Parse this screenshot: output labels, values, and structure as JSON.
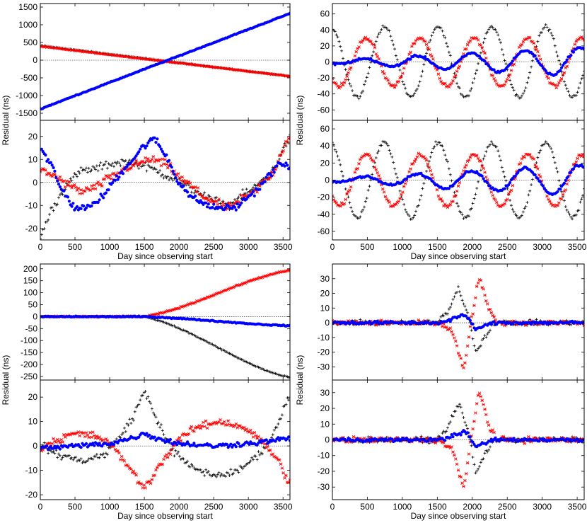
{
  "figure": {
    "series_colors": {
      "black": "#000000",
      "red": "#ff0000",
      "blue": "#0000ff"
    },
    "axis_color": "#000000",
    "zero_line_color": "#000000"
  },
  "chart_data": [
    {
      "id": "top-left-upper",
      "type": "scatter",
      "xlim": [
        0,
        3600
      ],
      "ylim": [
        -1700,
        1600
      ],
      "yticks": [
        1500,
        1000,
        500,
        0,
        -500,
        -1000,
        -1500
      ],
      "xticks": [],
      "ylabel": "",
      "xlabel": "",
      "series": [
        {
          "name": "black",
          "color": "#000000",
          "model": "linear",
          "params": {
            "a": 415,
            "b": -0.242
          },
          "noise": 8,
          "marker": "plus"
        },
        {
          "name": "red",
          "color": "#ff0000",
          "model": "linear",
          "params": {
            "a": 390,
            "b": -0.235
          },
          "noise": 8,
          "marker": "star"
        },
        {
          "name": "blue",
          "color": "#0000ff",
          "model": "linear",
          "params": {
            "a": -1380,
            "b": 0.75
          },
          "noise": 10,
          "marker": "dot"
        }
      ]
    },
    {
      "id": "top-left-lower",
      "type": "scatter",
      "xlim": [
        0,
        3600
      ],
      "ylim": [
        -25,
        27
      ],
      "yticks": [
        20,
        10,
        0,
        -10,
        -20
      ],
      "xticks": [
        0,
        500,
        1000,
        1500,
        2000,
        2500,
        3000,
        3500
      ],
      "ylabel": "Residual (ns)",
      "xlabel": "Day since observing start",
      "series": [
        {
          "name": "black",
          "color": "#000000",
          "model": "pts",
          "params": {
            "pts": [
              [
                0,
                -23
              ],
              [
                200,
                -10
              ],
              [
                400,
                0
              ],
              [
                600,
                5
              ],
              [
                800,
                6
              ],
              [
                1000,
                8
              ],
              [
                1200,
                9
              ],
              [
                1400,
                8
              ],
              [
                1600,
                6
              ],
              [
                1900,
                2
              ],
              [
                2200,
                -3
              ],
              [
                2500,
                -8
              ],
              [
                2700,
                -10
              ],
              [
                3000,
                -4
              ],
              [
                3300,
                3
              ],
              [
                3600,
                19
              ]
            ]
          },
          "noise": 1.5,
          "marker": "plus"
        },
        {
          "name": "red",
          "color": "#ff0000",
          "model": "pts",
          "params": {
            "pts": [
              [
                0,
                5
              ],
              [
                200,
                3
              ],
              [
                400,
                -1
              ],
              [
                600,
                -4
              ],
              [
                800,
                -2
              ],
              [
                1000,
                2
              ],
              [
                1300,
                7
              ],
              [
                1600,
                10
              ],
              [
                1800,
                8
              ],
              [
                2100,
                0
              ],
              [
                2400,
                -7
              ],
              [
                2700,
                -11
              ],
              [
                3000,
                -6
              ],
              [
                3300,
                2
              ],
              [
                3600,
                20
              ]
            ]
          },
          "noise": 1.5,
          "marker": "star"
        },
        {
          "name": "blue",
          "color": "#0000ff",
          "model": "pts",
          "params": {
            "pts": [
              [
                0,
                15
              ],
              [
                150,
                8
              ],
              [
                300,
                -3
              ],
              [
                500,
                -11
              ],
              [
                700,
                -11
              ],
              [
                900,
                -6
              ],
              [
                1100,
                2
              ],
              [
                1300,
                9
              ],
              [
                1500,
                16
              ],
              [
                1650,
                19
              ],
              [
                1800,
                12
              ],
              [
                2000,
                0
              ],
              [
                2200,
                -7
              ],
              [
                2500,
                -11
              ],
              [
                2800,
                -11
              ],
              [
                3100,
                -4
              ],
              [
                3300,
                3
              ],
              [
                3450,
                8
              ],
              [
                3600,
                7
              ]
            ]
          },
          "noise": 1.2,
          "marker": "dot"
        }
      ]
    },
    {
      "id": "top-right-upper",
      "type": "scatter",
      "xlim": [
        0,
        3600
      ],
      "ylim": [
        -73,
        73
      ],
      "yticks": [
        60,
        40,
        20,
        0,
        -20,
        -40,
        -60
      ],
      "xticks": [],
      "ylabel": "",
      "xlabel": "",
      "series": [
        {
          "name": "black",
          "color": "#000000",
          "model": "sine",
          "params": {
            "amp": 44,
            "period": 770,
            "phase": 1.8
          },
          "noise": 2,
          "marker": "plus"
        },
        {
          "name": "red",
          "color": "#ff0000",
          "model": "sine",
          "params": {
            "amp": 30,
            "period": 770,
            "phase": 3.9
          },
          "noise": 2,
          "marker": "star"
        },
        {
          "name": "blue",
          "color": "#0000ff",
          "model": "sine_grow",
          "params": {
            "amp0": 2,
            "amp1": 18,
            "period": 770,
            "phase": 4.2
          },
          "noise": 1.2,
          "marker": "dot"
        }
      ]
    },
    {
      "id": "top-right-lower",
      "type": "scatter",
      "xlim": [
        0,
        3600
      ],
      "ylim": [
        -70,
        70
      ],
      "yticks": [
        60,
        40,
        20,
        0,
        -20,
        -40,
        -60
      ],
      "xticks": [
        0,
        500,
        1000,
        1500,
        2000,
        2500,
        3000,
        3500
      ],
      "ylabel": "Residual (ns)",
      "xlabel": "Day since observing start",
      "series": [
        {
          "name": "black",
          "color": "#000000",
          "model": "sine",
          "params": {
            "amp": 44,
            "period": 770,
            "phase": 1.8
          },
          "noise": 2,
          "marker": "plus"
        },
        {
          "name": "red",
          "color": "#ff0000",
          "model": "sine",
          "params": {
            "amp": 30,
            "period": 770,
            "phase": 3.9
          },
          "noise": 2,
          "marker": "star"
        },
        {
          "name": "blue",
          "color": "#0000ff",
          "model": "sine_grow",
          "params": {
            "amp0": 2,
            "amp1": 18,
            "period": 770,
            "phase": 4.2
          },
          "noise": 1.2,
          "marker": "dot"
        }
      ]
    },
    {
      "id": "bottom-left-upper",
      "type": "scatter",
      "xlim": [
        0,
        3600
      ],
      "ylim": [
        -265,
        220
      ],
      "yticks": [
        200,
        150,
        100,
        50,
        0,
        -50,
        -100,
        -150,
        -200,
        -250
      ],
      "xticks": [],
      "ylabel": "Residual (ns)",
      "xlabel": "",
      "series": [
        {
          "name": "black",
          "color": "#000000",
          "model": "pts",
          "params": {
            "pts": [
              [
                0,
                0
              ],
              [
                1500,
                0
              ],
              [
                3600,
                -255
              ]
            ]
          },
          "noise": 2,
          "marker": "plus"
        },
        {
          "name": "red",
          "color": "#ff0000",
          "model": "pts",
          "params": {
            "pts": [
              [
                0,
                0
              ],
              [
                1500,
                0
              ],
              [
                3600,
                193
              ]
            ]
          },
          "noise": 2,
          "marker": "star"
        },
        {
          "name": "blue",
          "color": "#0000ff",
          "model": "pts",
          "params": {
            "pts": [
              [
                0,
                0
              ],
              [
                1500,
                0
              ],
              [
                3600,
                -38
              ]
            ]
          },
          "noise": 2,
          "marker": "dot"
        }
      ]
    },
    {
      "id": "bottom-left-lower",
      "type": "scatter",
      "xlim": [
        0,
        3600
      ],
      "ylim": [
        -22,
        27
      ],
      "yticks": [
        20,
        10,
        0,
        -10,
        -20
      ],
      "xticks": [
        0,
        500,
        1000,
        1500,
        2000,
        2500,
        3000,
        3500
      ],
      "ylabel": "",
      "xlabel": "Day since observing start",
      "series": [
        {
          "name": "black",
          "color": "#000000",
          "model": "pts",
          "params": {
            "pts": [
              [
                0,
                0
              ],
              [
                300,
                -4
              ],
              [
                600,
                -6
              ],
              [
                900,
                -4
              ],
              [
                1100,
                2
              ],
              [
                1300,
                10
              ],
              [
                1500,
                22
              ],
              [
                1700,
                10
              ],
              [
                1900,
                -2
              ],
              [
                2200,
                -9
              ],
              [
                2500,
                -12
              ],
              [
                2800,
                -11
              ],
              [
                3100,
                -5
              ],
              [
                3300,
                2
              ],
              [
                3600,
                20
              ]
            ]
          },
          "noise": 1.3,
          "marker": "plus"
        },
        {
          "name": "red",
          "color": "#ff0000",
          "model": "pts",
          "params": {
            "pts": [
              [
                0,
                -1
              ],
              [
                200,
                2
              ],
              [
                500,
                5
              ],
              [
                800,
                4
              ],
              [
                1000,
                1
              ],
              [
                1200,
                -6
              ],
              [
                1500,
                -17
              ],
              [
                1800,
                -5
              ],
              [
                2000,
                3
              ],
              [
                2300,
                8
              ],
              [
                2600,
                10
              ],
              [
                2900,
                8
              ],
              [
                3200,
                2
              ],
              [
                3400,
                -5
              ],
              [
                3600,
                -15
              ]
            ]
          },
          "noise": 1.3,
          "marker": "star"
        },
        {
          "name": "blue",
          "color": "#0000ff",
          "model": "pts",
          "params": {
            "pts": [
              [
                0,
                -1
              ],
              [
                500,
                0
              ],
              [
                1000,
                1
              ],
              [
                1300,
                3
              ],
              [
                1500,
                5
              ],
              [
                1700,
                3
              ],
              [
                2000,
                1
              ],
              [
                2500,
                0
              ],
              [
                3000,
                1
              ],
              [
                3600,
                3
              ]
            ]
          },
          "noise": 0.9,
          "marker": "dot"
        }
      ]
    },
    {
      "id": "bottom-right-upper",
      "type": "scatter",
      "xlim": [
        0,
        3600
      ],
      "ylim": [
        -39,
        40
      ],
      "yticks": [
        30,
        20,
        10,
        0,
        -10,
        -20,
        -30
      ],
      "xticks": [],
      "ylabel": "",
      "xlabel": "",
      "series": [
        {
          "name": "black",
          "color": "#000000",
          "model": "pulse",
          "params": {
            "pts": [
              [
                1500,
                0
              ],
              [
                1650,
                8
              ],
              [
                1800,
                23
              ],
              [
                1950,
                5
              ],
              [
                2050,
                -20
              ],
              [
                2200,
                -8
              ],
              [
                2300,
                0
              ]
            ]
          },
          "noise": 1.5,
          "marker": "plus"
        },
        {
          "name": "red",
          "color": "#ff0000",
          "model": "pulse",
          "params": {
            "pts": [
              [
                1500,
                0
              ],
              [
                1700,
                -5
              ],
              [
                1880,
                -30
              ],
              [
                2000,
                5
              ],
              [
                2100,
                31
              ],
              [
                2250,
                8
              ],
              [
                2350,
                0
              ]
            ]
          },
          "noise": 1.5,
          "marker": "star"
        },
        {
          "name": "blue",
          "color": "#0000ff",
          "model": "pulse",
          "params": {
            "pts": [
              [
                1550,
                0
              ],
              [
                1800,
                4
              ],
              [
                1900,
                5
              ],
              [
                2050,
                -4
              ],
              [
                2200,
                -2
              ],
              [
                2300,
                0
              ]
            ]
          },
          "noise": 1.0,
          "marker": "dot"
        }
      ]
    },
    {
      "id": "bottom-right-lower",
      "type": "scatter",
      "xlim": [
        0,
        3600
      ],
      "ylim": [
        -38,
        38
      ],
      "yticks": [
        30,
        20,
        10,
        0,
        -10,
        -20,
        -30
      ],
      "xticks": [
        0,
        500,
        1000,
        1500,
        2000,
        2500,
        3000,
        3500
      ],
      "ylabel": "Residual (ns)",
      "xlabel": "Day since observing start",
      "series": [
        {
          "name": "black",
          "color": "#000000",
          "model": "pulse",
          "params": {
            "pts": [
              [
                1500,
                0
              ],
              [
                1650,
                8
              ],
              [
                1800,
                23
              ],
              [
                1950,
                5
              ],
              [
                2050,
                -21
              ],
              [
                2200,
                -8
              ],
              [
                2300,
                0
              ]
            ]
          },
          "noise": 1.5,
          "marker": "plus"
        },
        {
          "name": "red",
          "color": "#ff0000",
          "model": "pulse",
          "params": {
            "pts": [
              [
                1500,
                0
              ],
              [
                1700,
                -5
              ],
              [
                1880,
                -30
              ],
              [
                2000,
                5
              ],
              [
                2100,
                31
              ],
              [
                2250,
                8
              ],
              [
                2350,
                0
              ]
            ]
          },
          "noise": 1.5,
          "marker": "star"
        },
        {
          "name": "blue",
          "color": "#0000ff",
          "model": "pulse",
          "params": {
            "pts": [
              [
                1550,
                0
              ],
              [
                1800,
                4
              ],
              [
                1900,
                5
              ],
              [
                2050,
                -4
              ],
              [
                2200,
                -2
              ],
              [
                2300,
                0
              ]
            ]
          },
          "noise": 1.0,
          "marker": "dot"
        }
      ]
    }
  ]
}
